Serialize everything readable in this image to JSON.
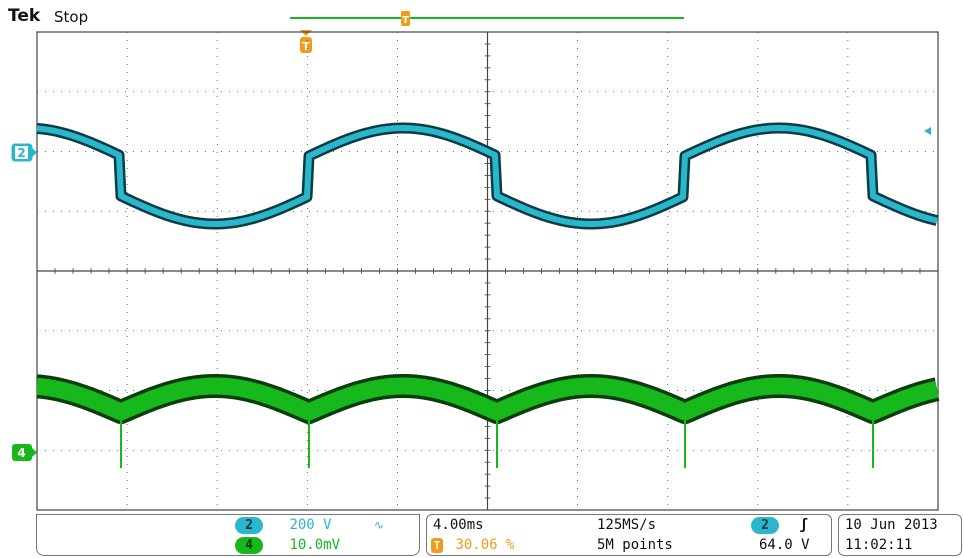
{
  "header": {
    "brand": "Tek",
    "acq_status": "Stop"
  },
  "colors": {
    "ch2": "#2ab7cc",
    "ch4": "#16b81c",
    "trigger": "#f39a1a",
    "grid": "#444444",
    "background": "#ffffff"
  },
  "markers": {
    "ch2_label": "2",
    "ch4_label": "4",
    "trigger_label": "T"
  },
  "channels": [
    {
      "id": "2",
      "scale": "200 V",
      "coupling_icon": "bandwidth-limit-icon"
    },
    {
      "id": "4",
      "scale": "10.0mV"
    }
  ],
  "horizontal": {
    "timebase": "4.00ms",
    "trigger_position": "30.06 %",
    "sample_rate": "125MS/s",
    "record_length": "5M points"
  },
  "trigger": {
    "source": "2",
    "slope_icon": "rising-edge-icon",
    "level": "64.0 V"
  },
  "datetime": {
    "date": "10 Jun  2013",
    "time": "11:02:11"
  }
}
